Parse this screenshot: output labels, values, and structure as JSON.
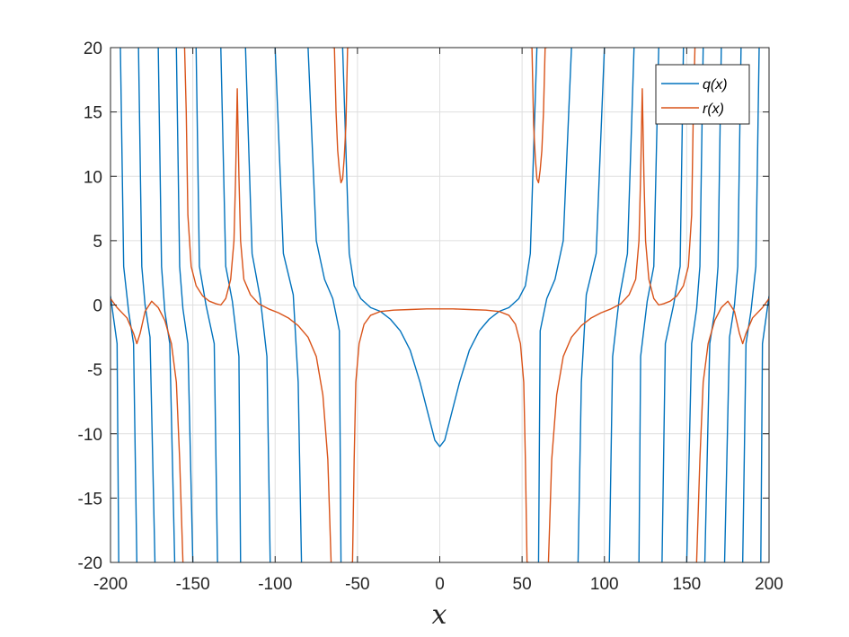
{
  "chart_data": {
    "type": "line",
    "title": "",
    "xlabel": "x",
    "ylabel": "",
    "xlim": [
      -200,
      200
    ],
    "ylim": [
      -20,
      20
    ],
    "grid": true,
    "legend_position": "top-right",
    "x_ticks": [
      -200,
      -150,
      -100,
      -50,
      0,
      50,
      100,
      150,
      200
    ],
    "x_tick_labels": [
      "-200",
      "-150",
      "-100",
      "-50",
      "0",
      "50",
      "100",
      "150",
      "200"
    ],
    "y_ticks": [
      -20,
      -15,
      -10,
      -5,
      0,
      5,
      10,
      15,
      20
    ],
    "y_tick_labels": [
      "-20",
      "-15",
      "-10",
      "-5",
      "0",
      "5",
      "10",
      "15",
      "20"
    ],
    "series": [
      {
        "name": "q(x)",
        "color": "#0072BD",
        "x": [
          -200,
          -196,
          -195,
          -194,
          -192,
          -189,
          -186,
          -184,
          -183,
          -181,
          -179,
          -176,
          -173,
          -171,
          -169,
          -167,
          -164,
          -161,
          -160,
          -158,
          -156,
          -153,
          -150,
          -148,
          -146,
          -142,
          -137,
          -135,
          -133,
          -130,
          -126,
          -122,
          -121,
          -118,
          -114,
          -109,
          -105,
          -103,
          -100,
          -95,
          -89,
          -86,
          -84,
          -80,
          -75,
          -70,
          -65,
          -61,
          -60,
          -59,
          -57,
          -55,
          -52,
          -48,
          -42,
          -36,
          -30,
          -24,
          -18,
          -12,
          -6,
          -3,
          0,
          3,
          6,
          12,
          18,
          24,
          30,
          36,
          42,
          48,
          52,
          55,
          57,
          59,
          60,
          61,
          65,
          70,
          75,
          80,
          84,
          86,
          89,
          95,
          100,
          103,
          105,
          109,
          114,
          118,
          121,
          122,
          126,
          130,
          133,
          135,
          137,
          142,
          146,
          148,
          150,
          153,
          156,
          158,
          160,
          161,
          164,
          167,
          169,
          171,
          173,
          176,
          179,
          181,
          183,
          184,
          186,
          189,
          192,
          194,
          195,
          196,
          200
        ],
        "y": [
          0.7,
          -3,
          -20,
          20,
          3,
          -0.5,
          -3,
          -20,
          20,
          3,
          0,
          -2.5,
          -20,
          20,
          3,
          -0.5,
          -3,
          -20,
          20,
          3,
          -0.3,
          -3,
          -20,
          20,
          3,
          0,
          -3,
          -20,
          20,
          3,
          0.3,
          -4,
          -20,
          20,
          4,
          0.5,
          -4,
          -20,
          20,
          4,
          0.8,
          -6,
          -20,
          20,
          5,
          2,
          0.5,
          -2,
          -20,
          20,
          12,
          4,
          1.5,
          0.5,
          -0.2,
          -0.5,
          -1.1,
          -2,
          -3.5,
          -6,
          -9,
          -10.5,
          -11,
          -10.5,
          -9,
          -6,
          -3.5,
          -2,
          -1.1,
          -0.5,
          -0.2,
          0.5,
          1.5,
          4,
          12,
          20,
          -20,
          -2,
          0.5,
          2,
          5,
          20,
          -20,
          -6,
          0.8,
          4,
          20,
          -20,
          -4,
          0.5,
          4,
          20,
          -20,
          -4,
          0.3,
          3,
          20,
          -20,
          -3,
          0,
          3,
          20,
          -20,
          -3,
          -0.3,
          3,
          20,
          -20,
          -3,
          -0.5,
          3,
          20,
          -20,
          -2.5,
          0,
          3,
          20,
          -20,
          -3,
          -0.5,
          3,
          20,
          -20,
          -3,
          0.7
        ]
      },
      {
        "name": "r(x)",
        "color": "#D95319",
        "x": [
          -200,
          -196,
          -190,
          -186,
          -184,
          -182,
          -179,
          -175,
          -171,
          -167,
          -163,
          -160,
          -158,
          -156,
          -155,
          -154,
          -153,
          -151,
          -148,
          -144,
          -140,
          -136,
          -133,
          -130,
          -127,
          -125,
          -124,
          -123,
          -122,
          -121,
          -119,
          -115,
          -110,
          -104,
          -98,
          -92,
          -86,
          -80,
          -75,
          -71,
          -68,
          -66,
          -65,
          -64,
          -63,
          -62,
          -61,
          -60,
          -59,
          -58,
          -57,
          -56,
          -55,
          -54,
          -53,
          -52,
          -51,
          -49,
          -46,
          -42,
          -36,
          -28,
          -18,
          -8,
          0,
          8,
          18,
          28,
          36,
          42,
          46,
          49,
          51,
          52,
          53,
          54,
          55,
          56,
          57,
          58,
          59,
          60,
          61,
          62,
          63,
          64,
          65,
          66,
          68,
          71,
          75,
          80,
          86,
          92,
          98,
          104,
          110,
          115,
          119,
          121,
          122,
          123,
          124,
          125,
          127,
          130,
          133,
          136,
          140,
          144,
          148,
          151,
          153,
          154,
          155,
          156,
          158,
          160,
          163,
          167,
          171,
          175,
          179,
          182,
          184,
          186,
          190,
          196,
          200
        ],
        "y": [
          0.5,
          -0.2,
          -1,
          -2.2,
          -3,
          -2.2,
          -0.5,
          0.3,
          -0.2,
          -1.2,
          -3,
          -6,
          -12,
          -20,
          20,
          15,
          7,
          3,
          1.5,
          0.7,
          0.3,
          0.1,
          0,
          0.5,
          2,
          5,
          10,
          16.8,
          10,
          5,
          2,
          0.8,
          0.1,
          -0.3,
          -0.6,
          -1,
          -1.6,
          -2.5,
          -4,
          -7,
          -12,
          -20,
          20,
          20,
          15,
          12,
          10.5,
          9.5,
          9.8,
          11.5,
          14,
          20,
          20,
          -20,
          -20,
          -12,
          -6,
          -3,
          -1.5,
          -0.8,
          -0.5,
          -0.4,
          -0.35,
          -0.3,
          -0.3,
          -0.3,
          -0.35,
          -0.4,
          -0.5,
          -0.8,
          -1.5,
          -3,
          -6,
          -12,
          -20,
          -20,
          20,
          20,
          14,
          11.5,
          9.8,
          9.5,
          10.5,
          12,
          15,
          20,
          20,
          -20,
          -12,
          -7,
          -4,
          -2.5,
          -1.6,
          -1,
          -0.6,
          -0.3,
          0.1,
          0.8,
          2,
          5,
          10,
          16.8,
          10,
          5,
          2,
          0.5,
          0,
          0.1,
          0.3,
          0.7,
          1.5,
          3,
          7,
          15,
          20,
          -20,
          -12,
          -6,
          -3,
          -1.2,
          -0.2,
          0.3,
          -0.5,
          -2.2,
          -3,
          -2.2,
          -1,
          -0.2,
          0.5
        ]
      }
    ]
  }
}
